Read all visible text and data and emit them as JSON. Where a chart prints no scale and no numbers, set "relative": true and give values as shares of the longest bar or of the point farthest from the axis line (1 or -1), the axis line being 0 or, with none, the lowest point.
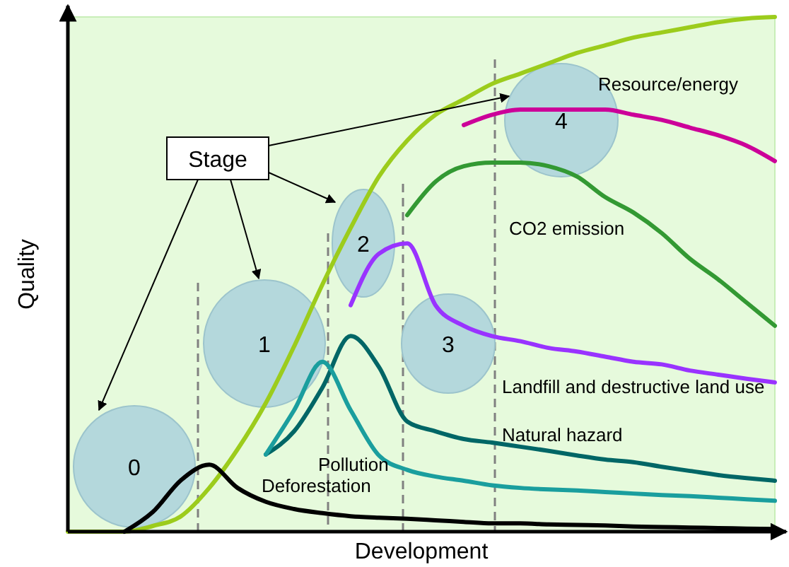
{
  "chart_data": {
    "type": "line",
    "relative": true,
    "xlabel": "Development",
    "ylabel": "Quality",
    "categories": [
      null,
      null,
      null,
      null,
      null,
      null,
      null,
      null,
      null,
      null,
      null,
      null,
      null,
      null,
      null,
      null,
      null,
      null,
      null,
      null,
      null,
      null,
      null,
      null,
      null,
      null
    ],
    "series": [
      {
        "color": "#9ccc1c",
        "values": [
          0,
          0,
          0,
          0.011,
          0.03,
          0.085,
          0.16,
          0.25,
          0.36,
          0.48,
          0.59,
          0.69,
          0.76,
          0.81,
          0.84,
          0.87,
          0.89,
          0.91,
          0.93,
          0.945,
          0.96,
          0.97,
          0.98,
          0.99,
          0.997,
          1
        ]
      },
      {
        "name": "Resource/energy",
        "color": "#cc0099",
        "values": [
          null,
          null,
          null,
          null,
          null,
          null,
          null,
          null,
          null,
          null,
          null,
          null,
          null,
          null,
          0.79,
          0.81,
          0.82,
          0.82,
          0.82,
          0.82,
          0.81,
          0.8,
          0.785,
          0.77,
          0.75,
          0.72
        ]
      },
      {
        "name": "CO2 emission",
        "color": "#339933",
        "values": [
          null,
          null,
          null,
          null,
          null,
          null,
          null,
          null,
          null,
          null,
          null,
          null,
          0.615,
          0.68,
          0.71,
          0.717,
          0.717,
          0.71,
          0.69,
          0.65,
          0.62,
          0.58,
          0.53,
          0.49,
          0.445,
          0.4
        ]
      },
      {
        "name": "Landfill and destructive land use",
        "color": "#9933ff",
        "values": [
          null,
          null,
          null,
          null,
          null,
          null,
          null,
          null,
          null,
          null,
          0.44,
          0.54,
          0.56,
          0.44,
          0.4,
          0.38,
          0.37,
          0.357,
          0.35,
          0.34,
          0.33,
          0.325,
          0.313,
          0.305,
          0.297,
          0.29
        ]
      },
      {
        "name": "Natural hazard",
        "color": "#006666",
        "values": [
          null,
          null,
          null,
          null,
          null,
          null,
          null,
          0.15,
          0.195,
          0.28,
          0.38,
          0.32,
          0.214,
          0.195,
          0.18,
          0.173,
          0.165,
          0.157,
          0.148,
          0.14,
          0.135,
          0.126,
          0.118,
          0.11,
          0.104,
          0.099
        ]
      },
      {
        "name": "Pollution",
        "color": "#1a9e9e",
        "values": [
          null,
          null,
          null,
          null,
          null,
          null,
          null,
          0.15,
          0.236,
          0.33,
          0.236,
          0.148,
          0.12,
          0.107,
          0.099,
          0.09,
          0.085,
          0.082,
          0.08,
          0.077,
          0.074,
          0.071,
          0.069,
          0.066,
          0.063,
          0.06
        ]
      },
      {
        "name": "Deforestation",
        "color": "#000000",
        "values": [
          null,
          null,
          0,
          0.038,
          0.1,
          0.13,
          0.085,
          0.058,
          0.044,
          0.036,
          0.03,
          0.027,
          0.025,
          0.022,
          0.019,
          0.016,
          0.016,
          0.014,
          0.013,
          0.012,
          0.01,
          0.009,
          0.008,
          0.007,
          0.006,
          0.005
        ]
      }
    ],
    "annotations": [
      "Stage",
      "0",
      "1",
      "2",
      "3",
      "4"
    ]
  }
}
